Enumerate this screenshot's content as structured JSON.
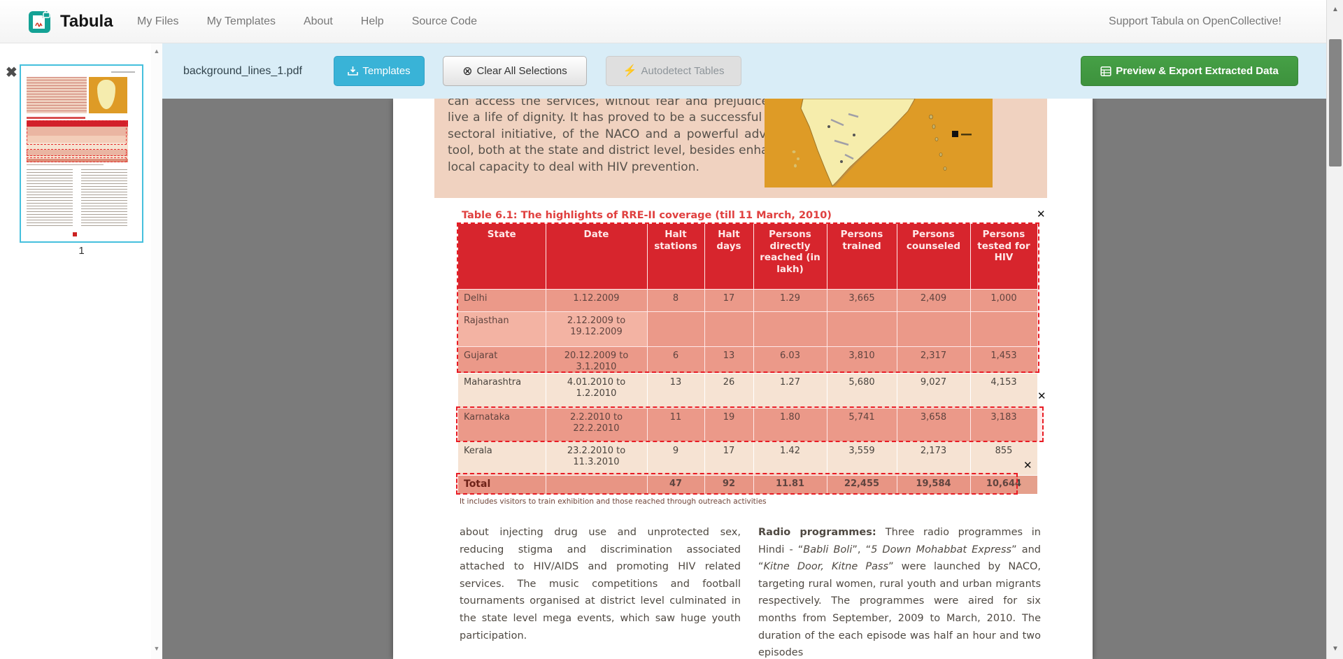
{
  "navbar": {
    "brand": "Tabula",
    "items": [
      {
        "label": "My Files",
        "name": "nav-item-my-files"
      },
      {
        "label": "My Templates",
        "name": "nav-item-my-templates"
      },
      {
        "label": "About",
        "name": "nav-item-about"
      },
      {
        "label": "Help",
        "name": "nav-item-help"
      },
      {
        "label": "Source Code",
        "name": "nav-item-source-code"
      }
    ],
    "support": "Support Tabula on OpenCollective!"
  },
  "toolbar": {
    "filename": "background_lines_1.pdf",
    "templates_label": "Templates",
    "clear_label": "Clear All Selections",
    "autodetect_label": "Autodetect Tables",
    "export_label": "Preview & Export Extracted Data"
  },
  "sidebar": {
    "page_number": "1"
  },
  "icons": {
    "clear": "⊗",
    "autodetect": "⚡",
    "close": "✕",
    "sidebar_close": "✖",
    "scroll_up": "▲",
    "scroll_down": "▼"
  },
  "colors": {
    "accent": "#39b3d7",
    "export_green": "#46a046",
    "toolbar_bg": "#d9edf7",
    "table_header_red": "#d2202a",
    "title_red": "#e0403f",
    "selection_red": "#e81c24",
    "thumb_border": "#45c0dd",
    "row_sel": "#e9a492",
    "row_sel_light": "#f2c2b0",
    "row_plain": "#f6e3d3",
    "row_total": "#e5a08c"
  },
  "document": {
    "intro": "can access the services, without fear and prejudice, and live a life of dignity. It has proved to be a successful multi-sectoral initiative, of the NACO and a powerful advocacy tool, both at the state and district level, besides enhancing local capacity to deal with HIV prevention.",
    "table_title": "Table 6.1: The highlights of RRE-II coverage (till 11 March, 2010)",
    "table": {
      "headers": [
        "State",
        "Date",
        "Halt stations",
        "Halt days",
        "Persons directly reached (in lakh)",
        "Persons trained",
        "Persons counseled",
        "Persons tested for HIV"
      ],
      "rows": [
        {
          "variant": "sel",
          "cells": [
            "Delhi",
            "1.12.2009",
            "8",
            "17",
            "1.29",
            "3,665",
            "2,409",
            "1,000"
          ]
        },
        {
          "variant": "sel_light",
          "cells": [
            "Rajasthan",
            "2.12.2009 to\n19.12.2009",
            "",
            "",
            "",
            "",
            "",
            ""
          ]
        },
        {
          "variant": "sel",
          "cells": [
            "Gujarat",
            "20.12.2009 to\n3.1.2010",
            "6",
            "13",
            "6.03",
            "3,810",
            "2,317",
            "1,453"
          ]
        },
        {
          "variant": "plain",
          "cells": [
            "Maharashtra",
            "4.01.2010 to\n1.2.2010",
            "13",
            "26",
            "1.27",
            "5,680",
            "9,027",
            "4,153"
          ]
        },
        {
          "variant": "sel",
          "cells": [
            "Karnataka",
            "2.2.2010 to\n22.2.2010",
            "11",
            "19",
            "1.80",
            "5,741",
            "3,658",
            "3,183"
          ]
        },
        {
          "variant": "plain",
          "cells": [
            "Kerala",
            "23.2.2010 to\n11.3.2010",
            "9",
            "17",
            "1.42",
            "3,559",
            "2,173",
            "855"
          ]
        },
        {
          "variant": "total",
          "cells": [
            "Total",
            "",
            "47",
            "92",
            "11.81",
            "22,455",
            "19,584",
            "10,644"
          ]
        }
      ]
    },
    "footnote": "It includes visitors to train exhibition and those reached through outreach activities",
    "left_column": "about injecting drug use and unprotected sex, reducing stigma and discrimination associated attached to HIV/AIDS and promoting HIV related services. The music competitions and football tournaments organised at district level culminated in the state level mega events, which saw huge youth participation.",
    "right_column": [
      {
        "t": "Radio programmes: ",
        "b": true
      },
      {
        "t": "Three radio programmes in Hindi - “"
      },
      {
        "t": "Babli Boli",
        "i": true
      },
      {
        "t": "”, “"
      },
      {
        "t": "5 Down Mohabbat Express",
        "i": true
      },
      {
        "t": "” and “"
      },
      {
        "t": "Kitne Door, Kitne Pass",
        "i": true
      },
      {
        "t": "” were launched by NACO, targeting rural women, rural youth and urban migrants respectively. The programmes were aired for six months from September, 2009 to March, 2010. The duration of the each episode was half an hour and two episodes"
      }
    ]
  }
}
